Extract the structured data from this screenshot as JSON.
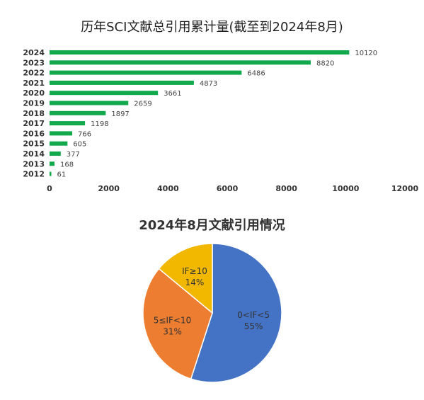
{
  "chart_data": [
    {
      "type": "bar",
      "orientation": "horizontal",
      "title": "历年SCI文献总引用累计量(截至到2024年8月)",
      "categories": [
        "2024",
        "2023",
        "2022",
        "2021",
        "2020",
        "2019",
        "2018",
        "2017",
        "2016",
        "2015",
        "2014",
        "2013",
        "2012"
      ],
      "values": [
        10120,
        8820,
        6486,
        4873,
        3661,
        2659,
        1897,
        1198,
        766,
        605,
        377,
        168,
        61
      ],
      "xlim": [
        0,
        12000
      ],
      "xticks": [
        "0",
        "2000",
        "4000",
        "6000",
        "8000",
        "10000",
        "12000"
      ],
      "grid": false,
      "color": "#12a94c"
    },
    {
      "type": "pie",
      "title": "2024年8月文献引用情况",
      "slices": [
        {
          "label": "0<IF<5",
          "value": 55,
          "percent": "55%",
          "color": "#4472c4"
        },
        {
          "label": "5≤IF<10",
          "value": 31,
          "percent": "31%",
          "color": "#ed7d31"
        },
        {
          "label": "IF≥10",
          "value": 14,
          "percent": "14%",
          "color": "#f2b800"
        }
      ]
    }
  ]
}
